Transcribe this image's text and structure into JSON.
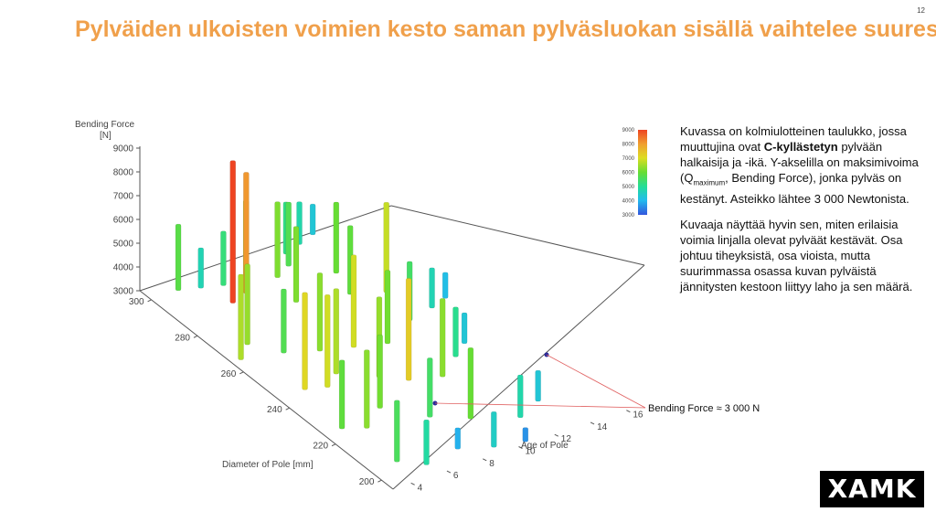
{
  "slide": {
    "title": "Pylväiden ulkoisten voimien kesto saman pylväsluokan sisällä vaihtelee suuresti",
    "page_number": "12",
    "logo_text": "XAMK"
  },
  "description": {
    "p1_before_bold": "Kuvassa on kolmiulotteinen taulukko, jossa muuttujina ovat ",
    "p1_bold": "C-kyllästetyn",
    "p1_mid": " pylvään halkaisija ja -ikä. Y-akselilla on maksimivoima (Q",
    "p1_sub": "maximum",
    "p1_after": ", Bending Force), jonka pylväs on kestänyt. Asteikko lähtee 3 000 Newtonista.",
    "p2": "Kuvaaja näyttää hyvin sen, miten erilaisia voimia linjalla olevat pylväät kestävät. Osa johtuu tiheyksistä, osa vioista, mutta suurimmassa osassa kuvan pylväistä jännitysten kestoon liittyy laho ja sen määrä."
  },
  "colors": {
    "title": "#f0a04b",
    "annotation_line": "#e06060",
    "marker": "#2a2a9a",
    "colorscale": [
      "#3355dd",
      "#22bbee",
      "#22dd99",
      "#66dd33",
      "#dddd22",
      "#f0a030",
      "#ee4422"
    ]
  },
  "chart_data": {
    "type": "bar3d",
    "z_axis_title": "Bending Force\n[N]",
    "x_axis_title": "Diameter of Pole [mm]",
    "y_axis_title": "Age of Pole",
    "z_ticks": [
      "3000",
      "4000",
      "5000",
      "6000",
      "7000",
      "8000",
      "9000"
    ],
    "x_ticks": [
      "200",
      "220",
      "240",
      "260",
      "280",
      "300"
    ],
    "y_ticks": [
      "4",
      "6",
      "8",
      "10",
      "12",
      "14",
      "16"
    ],
    "colorbar_ticks": [
      "3000",
      "4000",
      "5000",
      "6000",
      "7000",
      "8000",
      "9000"
    ],
    "zlim": [
      3000,
      9000
    ],
    "xlim": [
      195,
      305
    ],
    "ylim": [
      3,
      17
    ],
    "annotation": "Bending Force ≈ 3 000 N",
    "bars": [
      {
        "d": 300,
        "a": 4.5,
        "f": 5800
      },
      {
        "d": 298,
        "a": 5.5,
        "f": 4700
      },
      {
        "d": 296,
        "a": 6.5,
        "f": 5300
      },
      {
        "d": 294,
        "a": 7.5,
        "f": 6500
      },
      {
        "d": 292,
        "a": 9.0,
        "f": 6200
      },
      {
        "d": 295,
        "a": 10.0,
        "f": 5700
      },
      {
        "d": 300,
        "a": 10.5,
        "f": 5200
      },
      {
        "d": 302,
        "a": 11.5,
        "f": 4800
      },
      {
        "d": 304,
        "a": 12.5,
        "f": 4300
      },
      {
        "d": 288,
        "a": 6.0,
        "f": 9000
      },
      {
        "d": 290,
        "a": 7.0,
        "f": 8100
      },
      {
        "d": 286,
        "a": 11.5,
        "f": 6000
      },
      {
        "d": 280,
        "a": 8.5,
        "f": 6200
      },
      {
        "d": 276,
        "a": 11.0,
        "f": 5900
      },
      {
        "d": 272,
        "a": 12.5,
        "f": 6800
      },
      {
        "d": 265,
        "a": 3.5,
        "f": 6600
      },
      {
        "d": 270,
        "a": 4.5,
        "f": 6400
      },
      {
        "d": 262,
        "a": 5.5,
        "f": 5700
      },
      {
        "d": 258,
        "a": 7.0,
        "f": 6300
      },
      {
        "d": 255,
        "a": 8.5,
        "f": 6900
      },
      {
        "d": 252,
        "a": 10.0,
        "f": 6100
      },
      {
        "d": 258,
        "a": 12.0,
        "f": 5500
      },
      {
        "d": 260,
        "a": 13.5,
        "f": 4700
      },
      {
        "d": 262,
        "a": 14.5,
        "f": 4100
      },
      {
        "d": 245,
        "a": 4.5,
        "f": 7100
      },
      {
        "d": 243,
        "a": 5.5,
        "f": 6900
      },
      {
        "d": 247,
        "a": 6.5,
        "f": 6600
      },
      {
        "d": 240,
        "a": 8.0,
        "f": 6400
      },
      {
        "d": 235,
        "a": 9.0,
        "f": 7300
      },
      {
        "d": 232,
        "a": 10.5,
        "f": 6300
      },
      {
        "d": 238,
        "a": 12.0,
        "f": 5100
      },
      {
        "d": 242,
        "a": 13.0,
        "f": 4300
      },
      {
        "d": 225,
        "a": 4.0,
        "f": 5900
      },
      {
        "d": 222,
        "a": 5.0,
        "f": 6300
      },
      {
        "d": 228,
        "a": 6.5,
        "f": 6100
      },
      {
        "d": 218,
        "a": 8.0,
        "f": 5500
      },
      {
        "d": 212,
        "a": 9.5,
        "f": 6000
      },
      {
        "d": 206,
        "a": 11.5,
        "f": 4800
      },
      {
        "d": 210,
        "a": 13.0,
        "f": 4300
      },
      {
        "d": 205,
        "a": 4.5,
        "f": 5600
      },
      {
        "d": 200,
        "a": 5.5,
        "f": 4900
      },
      {
        "d": 202,
        "a": 7.5,
        "f": 3900
      },
      {
        "d": 198,
        "a": 9.0,
        "f": 4500
      },
      {
        "d": 196,
        "a": 10.5,
        "f": 3600
      }
    ]
  }
}
